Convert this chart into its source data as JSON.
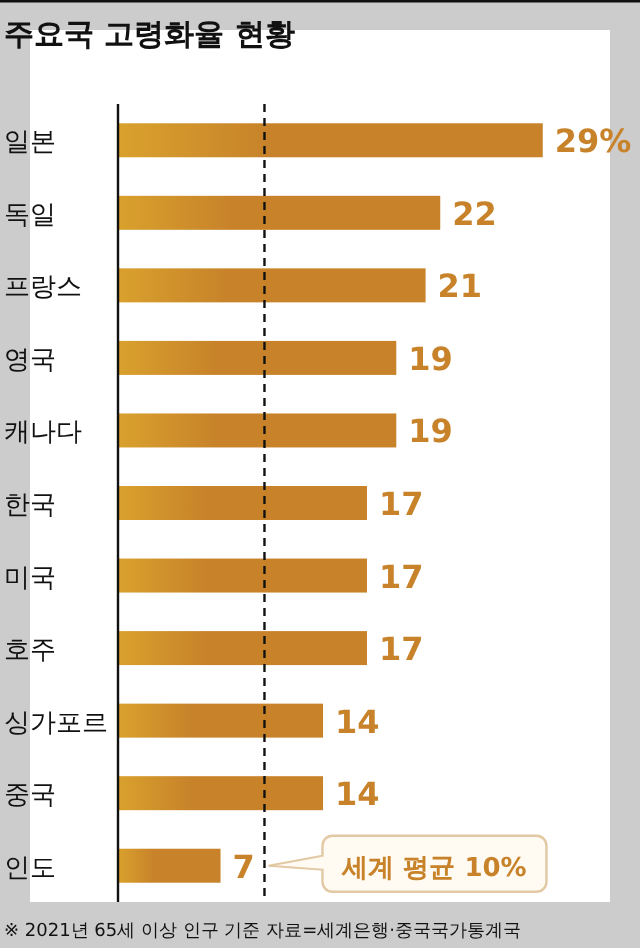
{
  "chart_data": {
    "type": "bar",
    "orientation": "horizontal",
    "title": "주요국 고령화율 현황",
    "categories": [
      "일본",
      "독일",
      "프랑스",
      "영국",
      "캐나다",
      "한국",
      "미국",
      "호주",
      "싱가포르",
      "중국",
      "인도"
    ],
    "values": [
      29,
      22,
      21,
      19,
      19,
      17,
      17,
      17,
      14,
      14,
      7
    ],
    "value_labels": [
      "29%",
      "22",
      "21",
      "19",
      "19",
      "17",
      "17",
      "17",
      "14",
      "14",
      "7"
    ],
    "color": "#c8832a",
    "xlim": [
      0,
      34
    ],
    "tick_labels": "y",
    "ref_lines": [
      {
        "axis": "x",
        "value": 10,
        "label": "세계 평균 10%",
        "line_style": "dashed"
      }
    ],
    "annotations": [
      "※ 2021년 65세 이상 인구 기준 자료=세계은행·중국국가통계국"
    ]
  }
}
